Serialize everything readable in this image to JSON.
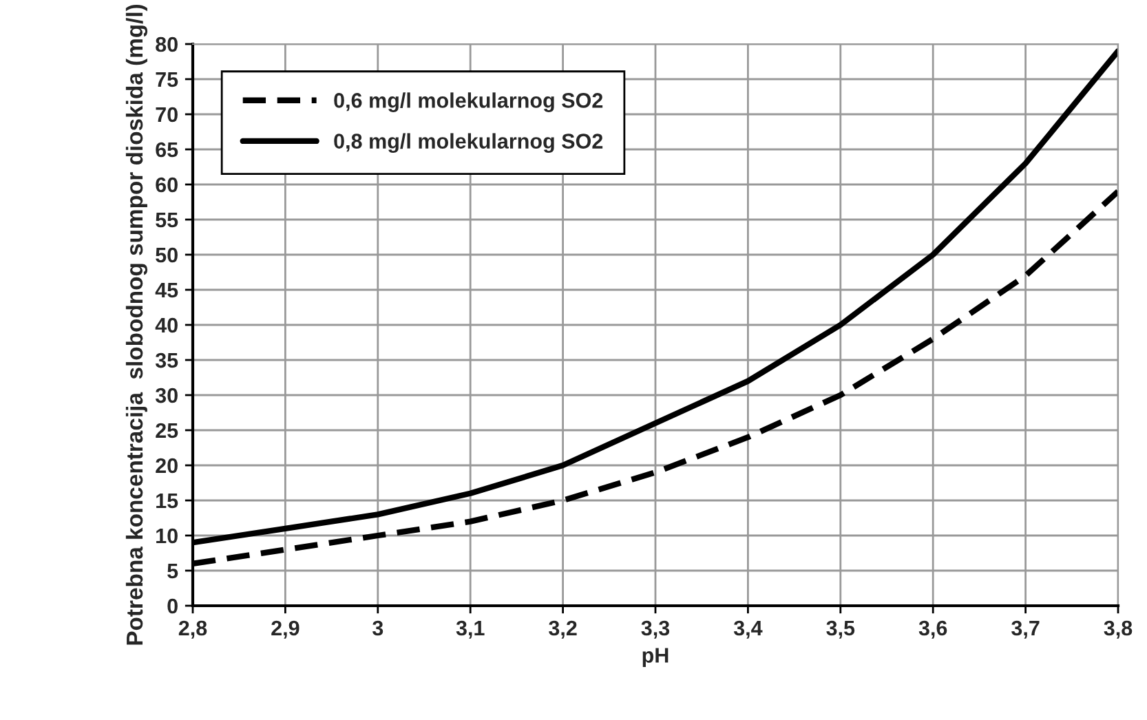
{
  "chart_data": {
    "type": "line",
    "xlabel": "pH",
    "ylabel": "Potrebna koncentracija  slobodnog sumpor dioskida (mg/l)",
    "x": [
      2.8,
      2.9,
      3.0,
      3.1,
      3.2,
      3.3,
      3.4,
      3.5,
      3.6,
      3.7,
      3.8
    ],
    "series": [
      {
        "name": "0,6 mg/l molekularnog SO2",
        "color": "#000000",
        "line_style": "dashed",
        "values": [
          6,
          8,
          10,
          12,
          15,
          19,
          24,
          30,
          38,
          47,
          59
        ]
      },
      {
        "name": "0,8 mg/l molekularnog SO2",
        "color": "#000000",
        "line_style": "solid",
        "values": [
          9,
          11,
          13,
          16,
          20,
          26,
          32,
          40,
          50,
          63,
          79
        ]
      }
    ],
    "xlim": [
      2.8,
      3.8
    ],
    "xticks": [
      {
        "value": 2.8,
        "label": "2,8"
      },
      {
        "value": 2.9,
        "label": "2,9"
      },
      {
        "value": 3.0,
        "label": "3"
      },
      {
        "value": 3.1,
        "label": "3,1"
      },
      {
        "value": 3.2,
        "label": "3,2"
      },
      {
        "value": 3.3,
        "label": "3,3"
      },
      {
        "value": 3.4,
        "label": "3,4"
      },
      {
        "value": 3.5,
        "label": "3,5"
      },
      {
        "value": 3.6,
        "label": "3,6"
      },
      {
        "value": 3.7,
        "label": "3,7"
      },
      {
        "value": 3.8,
        "label": "3,8"
      }
    ],
    "ylim": [
      0,
      80
    ],
    "yticks": [
      0,
      5,
      10,
      15,
      20,
      25,
      30,
      35,
      40,
      45,
      50,
      55,
      60,
      65,
      70,
      75,
      80
    ],
    "grid": true,
    "legend": "top left",
    "marker": "none"
  }
}
